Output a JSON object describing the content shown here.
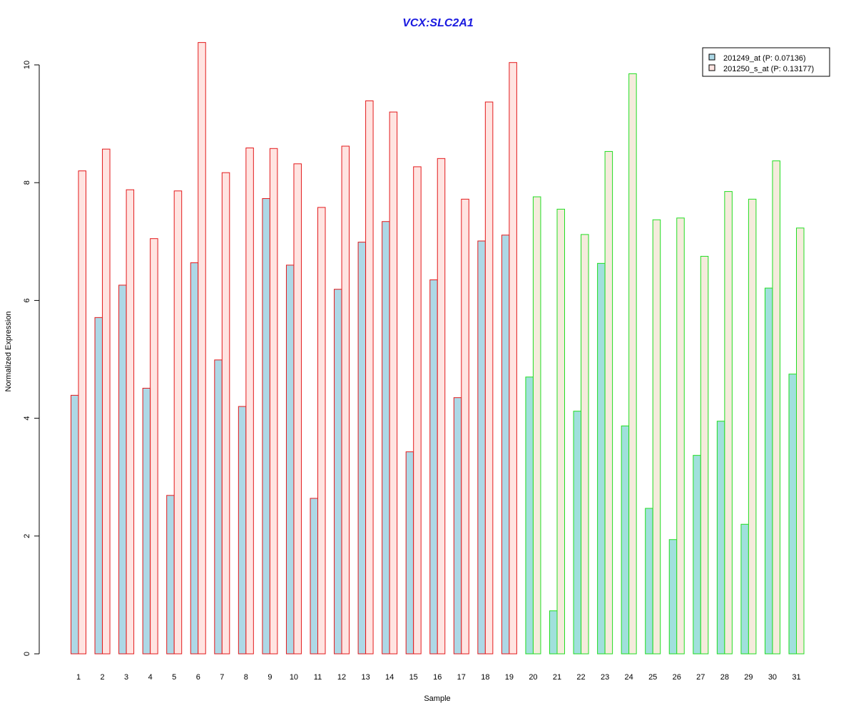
{
  "chart_data": {
    "type": "bar",
    "title": "VCX:SLC2A1",
    "xlabel": "Sample",
    "ylabel": "Normalized Expression",
    "ylim": [
      0,
      10.4
    ],
    "yticks": [
      0,
      2,
      4,
      6,
      8,
      10
    ],
    "grid": false,
    "legend_position": "top-right",
    "categories": [
      "1",
      "2",
      "3",
      "4",
      "5",
      "6",
      "7",
      "8",
      "9",
      "10",
      "11",
      "12",
      "13",
      "14",
      "15",
      "16",
      "17",
      "18",
      "19",
      "20",
      "21",
      "22",
      "23",
      "24",
      "25",
      "26",
      "27",
      "28",
      "29",
      "30",
      "31"
    ],
    "groups": [
      {
        "samples": [
          1,
          19
        ],
        "border_color": "#e31a1c"
      },
      {
        "samples": [
          20,
          31
        ],
        "border_color": "#22dd22"
      }
    ],
    "series": [
      {
        "name": "201249_at (P: 0.07136)",
        "fill_colors": [
          "#add8e6",
          "#a0e0dc"
        ],
        "values": [
          4.39,
          5.71,
          6.26,
          4.51,
          2.69,
          6.64,
          4.99,
          4.2,
          7.73,
          6.6,
          2.64,
          6.19,
          6.99,
          7.34,
          3.43,
          6.35,
          4.35,
          7.01,
          7.11,
          4.7,
          0.73,
          4.12,
          6.63,
          3.87,
          2.47,
          1.94,
          3.37,
          3.95,
          2.2,
          6.21,
          4.75
        ]
      },
      {
        "name": "201250_s_at (P: 0.13177)",
        "fill_colors": [
          "#ffe4e1",
          "#f5ebdc"
        ],
        "values": [
          8.2,
          8.57,
          7.88,
          7.05,
          7.86,
          10.38,
          8.17,
          8.59,
          8.58,
          8.32,
          7.58,
          8.62,
          9.39,
          9.2,
          8.27,
          8.41,
          7.72,
          9.37,
          10.04,
          7.76,
          7.55,
          7.12,
          8.53,
          9.85,
          7.37,
          7.4,
          6.75,
          7.85,
          7.72,
          8.37,
          7.23
        ]
      }
    ]
  }
}
